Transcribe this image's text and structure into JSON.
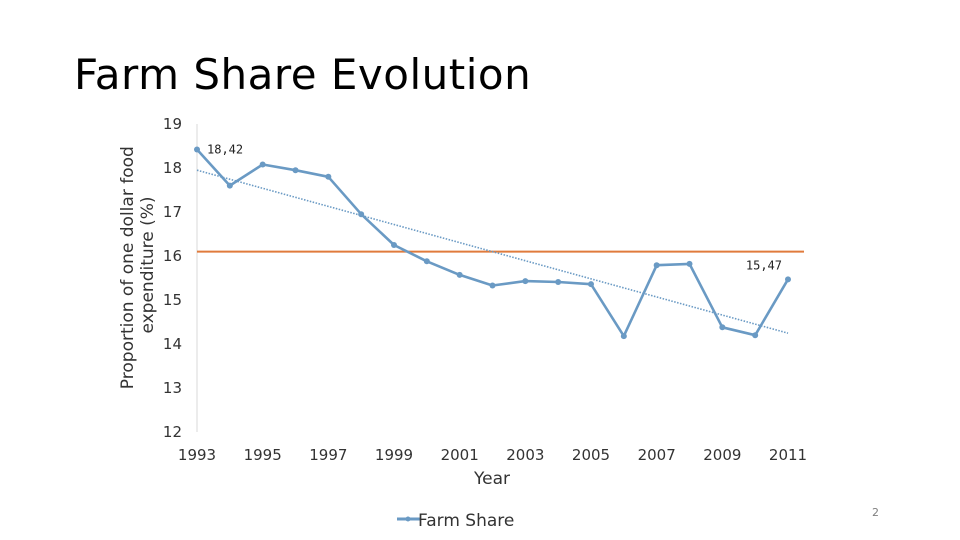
{
  "slide": {
    "title": "Farm Share Evolution",
    "page_number": "2"
  },
  "chart_data": {
    "type": "line",
    "title": "",
    "xlabel": "Year",
    "ylabel": "Proportion of one dollar food expenditure (%)",
    "x": [
      1993,
      1994,
      1995,
      1996,
      1997,
      1998,
      1999,
      2000,
      2001,
      2002,
      2003,
      2004,
      2005,
      2006,
      2007,
      2008,
      2009,
      2010,
      2011
    ],
    "x_ticks": [
      "1993",
      "1995",
      "1997",
      "1999",
      "2001",
      "2003",
      "2005",
      "2007",
      "2009",
      "2011"
    ],
    "y_ticks": [
      "12",
      "13",
      "14",
      "15",
      "16",
      "17",
      "18",
      "19"
    ],
    "ylim": [
      12,
      19
    ],
    "series": [
      {
        "name": "Farm Share",
        "color": "#6a9ac4",
        "values": [
          18.42,
          17.6,
          18.08,
          17.95,
          17.8,
          16.95,
          16.25,
          15.88,
          15.57,
          15.33,
          15.43,
          15.41,
          15.36,
          14.18,
          15.79,
          15.82,
          14.38,
          14.2,
          15.47
        ]
      }
    ],
    "data_labels": [
      {
        "x": 1993,
        "text": "18,42"
      },
      {
        "x": 2011,
        "text": "15,47"
      }
    ],
    "overlay_lines": [
      {
        "kind": "linear-trend",
        "series": "Farm Share",
        "style": "dotted",
        "color": "#6a9ac4"
      },
      {
        "kind": "horizontal-line",
        "y": 16.1,
        "color": "#e07b3c"
      }
    ],
    "legend": {
      "position": "bottom",
      "entries": [
        "Farm Share"
      ]
    },
    "grid": false
  }
}
